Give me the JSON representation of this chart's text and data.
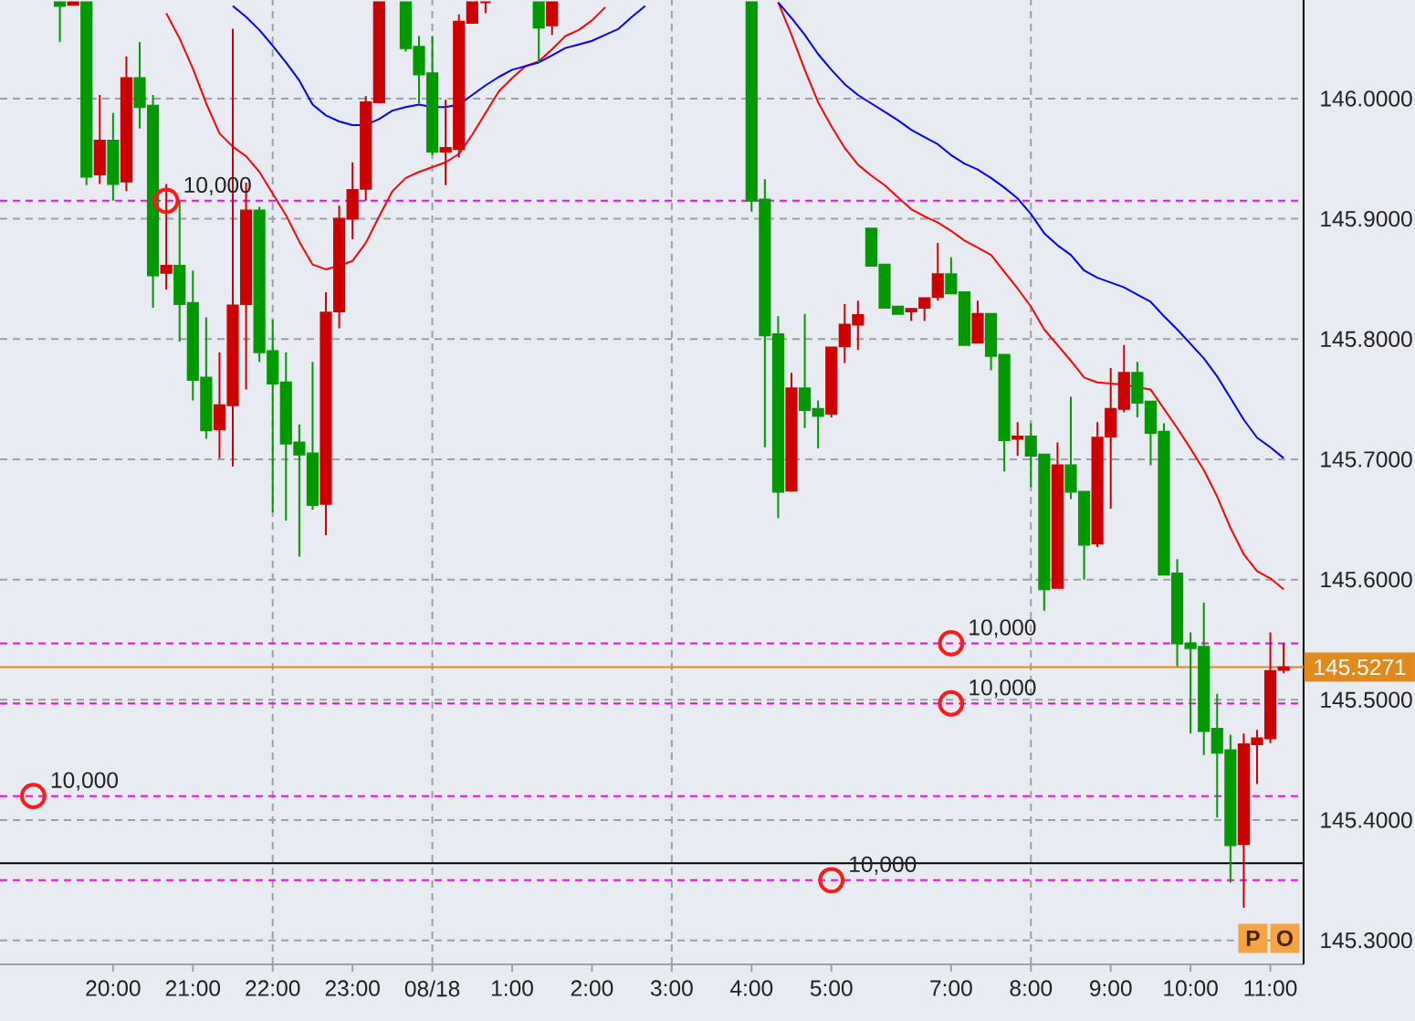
{
  "chart_data": {
    "type": "candlestick",
    "categories": [
      null,
      null,
      null,
      null,
      null,
      null,
      null,
      null,
      "20:00",
      null,
      null,
      null,
      null,
      null,
      "21:00",
      null,
      null,
      null,
      null,
      null,
      "22:00",
      null,
      null,
      null,
      null,
      null,
      "23:00",
      null,
      null,
      null,
      null,
      null,
      "08/18",
      null,
      null,
      null,
      null,
      null,
      "1:00",
      null,
      null,
      null,
      null,
      null,
      "2:00",
      null,
      null,
      null,
      null,
      null,
      "3:00",
      null,
      null,
      null,
      null,
      null,
      "4:00",
      null,
      null,
      null,
      null,
      null,
      "5:00",
      null,
      null,
      null,
      null,
      null,
      null,
      null,
      null,
      "7:00",
      null,
      null,
      null,
      null,
      null,
      "8:00",
      null,
      null,
      null,
      null,
      null,
      "9:00",
      null,
      null,
      null,
      null,
      null,
      "10:00",
      null,
      null,
      null,
      null,
      null,
      "11:00",
      null,
      null
    ],
    "ohlc": [
      null,
      null,
      null,
      null,
      [
        146.08,
        146.08,
        146.047,
        146.077
      ],
      [
        146.078,
        146.08,
        146.078,
        146.08
      ],
      [
        146.08,
        146.08,
        145.928,
        145.935
      ],
      [
        145.937,
        146.003,
        145.929,
        145.965
      ],
      [
        145.965,
        145.988,
        145.915,
        145.929
      ],
      [
        145.931,
        146.035,
        145.923,
        146.017
      ],
      [
        146.017,
        146.047,
        145.975,
        145.993
      ],
      [
        145.994,
        146.003,
        145.826,
        145.853
      ],
      [
        145.855,
        145.929,
        145.841,
        145.861
      ],
      [
        145.861,
        145.915,
        145.798,
        145.829
      ],
      [
        145.83,
        145.857,
        145.749,
        145.766
      ],
      [
        145.768,
        145.818,
        145.717,
        145.724
      ],
      [
        145.725,
        145.789,
        145.701,
        145.745
      ],
      [
        145.745,
        146.058,
        145.694,
        145.828
      ],
      [
        145.829,
        145.93,
        145.758,
        145.907
      ],
      [
        145.907,
        145.91,
        145.781,
        145.789
      ],
      [
        145.79,
        145.816,
        145.656,
        145.763
      ],
      [
        145.764,
        145.789,
        145.649,
        145.713
      ],
      [
        145.714,
        145.729,
        145.619,
        145.704
      ],
      [
        145.705,
        145.781,
        145.658,
        145.662
      ],
      [
        145.663,
        145.839,
        145.637,
        145.822
      ],
      [
        145.823,
        145.911,
        145.809,
        145.9
      ],
      [
        145.9,
        145.947,
        145.883,
        145.924
      ],
      [
        145.925,
        146.002,
        145.915,
        145.997
      ],
      [
        145.997,
        146.08,
        145.996,
        146.08
      ],
      null,
      [
        146.08,
        146.08,
        146.039,
        146.042
      ],
      [
        146.043,
        146.052,
        145.996,
        146.02
      ],
      [
        146.021,
        146.052,
        145.953,
        145.956
      ],
      [
        145.956,
        145.999,
        145.928,
        145.959
      ],
      [
        145.958,
        146.07,
        145.951,
        146.064
      ],
      [
        146.063,
        146.08,
        146.063,
        146.08
      ],
      [
        146.08,
        146.08,
        146.071,
        146.08
      ],
      null,
      null,
      null,
      [
        146.08,
        146.08,
        146.03,
        146.059
      ],
      [
        146.061,
        146.08,
        146.053,
        146.08
      ],
      null,
      null,
      null,
      null,
      null,
      null,
      null,
      null,
      null,
      null,
      null,
      null,
      null,
      null,
      [
        146.08,
        146.08,
        145.906,
        145.915
      ],
      [
        145.916,
        145.933,
        145.71,
        145.803
      ],
      [
        145.804,
        145.819,
        145.651,
        145.673
      ],
      [
        145.674,
        145.772,
        145.673,
        145.759
      ],
      [
        145.759,
        145.821,
        145.726,
        145.741
      ],
      [
        145.742,
        145.749,
        145.709,
        145.736
      ],
      [
        145.738,
        145.793,
        145.735,
        145.793
      ],
      [
        145.794,
        145.829,
        145.78,
        145.812
      ],
      [
        145.812,
        145.832,
        145.791,
        145.82
      ],
      [
        145.892,
        145.892,
        145.861,
        145.861
      ],
      [
        145.862,
        145.862,
        145.826,
        145.826
      ],
      [
        145.827,
        145.827,
        145.821,
        145.821
      ],
      [
        145.823,
        145.825,
        145.815,
        145.825
      ],
      [
        145.826,
        145.834,
        145.815,
        145.834
      ],
      [
        145.835,
        145.88,
        145.832,
        145.854
      ],
      [
        145.854,
        145.868,
        145.838,
        145.838
      ],
      [
        145.839,
        145.839,
        145.795,
        145.795
      ],
      [
        145.797,
        145.832,
        145.797,
        145.821
      ],
      [
        145.821,
        145.821,
        145.774,
        145.786
      ],
      [
        145.787,
        145.787,
        145.69,
        145.716
      ],
      [
        145.717,
        145.731,
        145.703,
        145.719
      ],
      [
        145.719,
        145.73,
        145.677,
        145.703
      ],
      [
        145.704,
        145.704,
        145.574,
        145.592
      ],
      [
        145.593,
        145.714,
        145.593,
        145.695
      ],
      [
        145.695,
        145.752,
        145.667,
        145.673
      ],
      [
        145.673,
        145.673,
        145.6,
        145.629
      ],
      [
        145.63,
        145.731,
        145.627,
        145.718
      ],
      [
        145.719,
        145.776,
        145.659,
        145.742
      ],
      [
        145.742,
        145.795,
        145.739,
        145.772
      ],
      [
        145.772,
        145.781,
        145.735,
        145.747
      ],
      [
        145.748,
        145.748,
        145.695,
        145.722
      ],
      [
        145.723,
        145.73,
        145.604,
        145.604
      ],
      [
        145.605,
        145.617,
        145.528,
        145.547
      ],
      [
        145.547,
        145.556,
        145.472,
        145.543
      ],
      [
        145.544,
        145.581,
        145.454,
        145.474
      ],
      [
        145.476,
        145.505,
        145.402,
        145.456
      ],
      [
        145.458,
        145.471,
        145.348,
        145.379
      ],
      [
        145.38,
        145.472,
        145.327,
        145.463
      ],
      [
        145.463,
        145.475,
        145.43,
        145.468
      ],
      [
        145.468,
        145.556,
        145.464,
        145.524
      ],
      [
        145.525,
        145.547,
        145.522,
        145.527
      ],
      null
    ],
    "colors": [
      null,
      null,
      null,
      null,
      "#009900",
      "#cc0000",
      "#009900",
      "#cc0000",
      "#009900",
      "#cc0000",
      "#009900",
      "#009900",
      "#cc0000",
      "#009900",
      "#009900",
      "#009900",
      "#cc0000",
      "#cc0000",
      "#cc0000",
      "#009900",
      "#009900",
      "#009900",
      "#009900",
      "#009900",
      "#cc0000",
      "#cc0000",
      "#cc0000",
      "#cc0000",
      "#cc0000",
      null,
      "#009900",
      "#009900",
      "#009900",
      "#cc0000",
      "#cc0000",
      "#cc0000",
      "#cc0000",
      null,
      null,
      null,
      "#009900",
      "#cc0000",
      null,
      null,
      null,
      null,
      null,
      null,
      null,
      null,
      null,
      null,
      null,
      null,
      null,
      null,
      "#009900",
      "#009900",
      "#009900",
      "#cc0000",
      "#009900",
      "#009900",
      "#cc0000",
      "#cc0000",
      "#cc0000",
      "#009900",
      "#009900",
      "#009900",
      "#cc0000",
      "#cc0000",
      "#cc0000",
      "#009900",
      "#009900",
      "#cc0000",
      "#009900",
      "#009900",
      "#cc0000",
      "#009900",
      "#009900",
      "#cc0000",
      "#009900",
      "#009900",
      "#cc0000",
      "#cc0000",
      "#cc0000",
      "#009900",
      "#009900",
      "#009900",
      "#009900",
      "#009900",
      "#009900",
      "#009900",
      "#009900",
      "#cc0000",
      "#cc0000",
      "#cc0000",
      "#cc0000",
      null
    ],
    "series": [
      {
        "type": "line",
        "color": "#ff0000",
        "values": [
          null,
          null,
          null,
          null,
          null,
          null,
          null,
          null,
          null,
          null,
          null,
          null,
          146.071,
          146.05,
          146.025,
          145.996,
          145.971,
          145.96,
          145.952,
          145.939,
          145.921,
          145.903,
          145.881,
          145.862,
          145.858,
          145.861,
          145.865,
          145.88,
          145.902,
          145.923,
          145.934,
          145.939,
          145.943,
          145.947,
          145.954,
          145.97,
          145.988,
          146.006,
          146.017,
          146.027,
          146.031,
          146.041,
          146.052,
          146.057,
          146.065,
          146.076,
          null,
          null,
          null,
          null,
          null,
          null,
          null,
          null,
          null,
          null,
          null,
          null,
          146.08,
          146.053,
          146.024,
          145.997,
          145.977,
          145.959,
          145.945,
          145.936,
          145.928,
          145.918,
          145.908,
          145.902,
          145.897,
          145.89,
          145.882,
          145.876,
          145.87,
          145.856,
          145.842,
          145.827,
          145.808,
          145.795,
          145.782,
          145.768,
          145.764,
          145.763,
          145.762,
          145.76,
          145.758,
          145.742,
          145.726,
          145.709,
          145.691,
          145.669,
          145.643,
          145.621,
          145.607,
          145.601,
          145.592,
          null
        ]
      },
      {
        "type": "line",
        "color": "#0000ff",
        "values": [
          null,
          null,
          null,
          null,
          null,
          null,
          null,
          null,
          null,
          null,
          null,
          null,
          null,
          null,
          null,
          null,
          null,
          146.077,
          146.068,
          146.057,
          146.044,
          146.03,
          146.015,
          145.995,
          145.986,
          145.981,
          145.978,
          145.978,
          145.983,
          145.99,
          145.993,
          145.995,
          145.993,
          145.993,
          145.995,
          146.003,
          146.011,
          146.018,
          146.024,
          146.027,
          146.03,
          146.036,
          146.042,
          146.045,
          146.048,
          146.053,
          146.058,
          146.068,
          146.077,
          null,
          null,
          null,
          null,
          null,
          null,
          null,
          null,
          null,
          146.08,
          146.067,
          146.053,
          146.037,
          146.024,
          146.012,
          146.003,
          145.996,
          145.989,
          145.982,
          145.974,
          145.968,
          145.962,
          145.953,
          145.946,
          145.941,
          145.934,
          145.926,
          145.917,
          145.904,
          145.888,
          145.878,
          145.87,
          145.857,
          145.851,
          145.847,
          145.843,
          145.837,
          145.831,
          145.819,
          145.808,
          145.796,
          145.784,
          145.769,
          145.751,
          145.733,
          145.718,
          145.71,
          145.701,
          null
        ]
      },
      {
        "type": "scatter",
        "name": "10,000",
        "marker": "circle",
        "color": "#ff1a1a",
        "values": [
          null,
          null,
          null,
          null,
          null,
          null,
          null,
          null,
          null,
          null,
          null,
          null,
          145.915,
          null,
          null,
          null,
          null,
          null,
          null,
          null,
          null,
          null,
          null,
          null,
          null,
          null,
          null,
          null,
          null,
          null,
          null,
          null,
          null,
          null,
          null,
          null,
          null,
          null,
          null,
          null,
          null,
          null,
          null,
          null,
          null,
          null,
          null,
          null,
          null,
          null,
          null,
          null,
          null,
          null,
          null,
          null,
          null,
          null,
          null,
          null,
          null,
          null,
          null,
          null,
          null,
          null,
          null,
          null,
          null,
          null,
          null,
          null,
          null,
          null,
          null,
          null,
          null,
          null,
          null,
          null,
          null,
          null,
          null,
          null,
          null,
          null,
          null,
          null,
          null,
          null,
          null,
          null,
          null,
          null,
          null,
          null,
          null,
          null
        ]
      },
      {
        "type": "scatter",
        "name": "10,000",
        "marker": "circle",
        "color": "#ff1a1a",
        "values": [
          null,
          null,
          null,
          null,
          null,
          null,
          null,
          null,
          null,
          null,
          null,
          null,
          null,
          null,
          null,
          null,
          null,
          null,
          null,
          null,
          null,
          null,
          null,
          null,
          null,
          null,
          null,
          null,
          null,
          null,
          null,
          null,
          null,
          null,
          null,
          null,
          null,
          null,
          null,
          null,
          null,
          null,
          null,
          null,
          null,
          null,
          null,
          null,
          null,
          null,
          null,
          null,
          null,
          null,
          null,
          null,
          null,
          null,
          null,
          null,
          null,
          null,
          null,
          null,
          null,
          null,
          null,
          null,
          null,
          null,
          null,
          145.547,
          null,
          null,
          null,
          null,
          null,
          null,
          null,
          null,
          null,
          null,
          null,
          null,
          null,
          null,
          null,
          null,
          null,
          null,
          null,
          null,
          null,
          null,
          null,
          null,
          null,
          null
        ]
      },
      {
        "type": "scatter",
        "name": "10,000",
        "marker": "circle",
        "color": "#ff1a1a",
        "values": [
          null,
          null,
          null,
          null,
          null,
          null,
          null,
          null,
          null,
          null,
          null,
          null,
          null,
          null,
          null,
          null,
          null,
          null,
          null,
          null,
          null,
          null,
          null,
          null,
          null,
          null,
          null,
          null,
          null,
          null,
          null,
          null,
          null,
          null,
          null,
          null,
          null,
          null,
          null,
          null,
          null,
          null,
          null,
          null,
          null,
          null,
          null,
          null,
          null,
          null,
          null,
          null,
          null,
          null,
          null,
          null,
          null,
          null,
          null,
          null,
          null,
          null,
          null,
          null,
          null,
          null,
          null,
          null,
          null,
          null,
          null,
          145.497,
          null,
          null,
          null,
          null,
          null,
          null,
          null,
          null,
          null,
          null,
          null,
          null,
          null,
          null,
          null,
          null,
          null,
          null,
          null,
          null,
          null,
          null,
          null,
          null,
          null,
          null
        ]
      },
      {
        "type": "scatter",
        "name": "10,000",
        "marker": "circle",
        "color": "#ff1a1a",
        "values": [
          null,
          null,
          145.42,
          null,
          null,
          null,
          null,
          null,
          null,
          null,
          null,
          null,
          null,
          null,
          null,
          null,
          null,
          null,
          null,
          null,
          null,
          null,
          null,
          null,
          null,
          null,
          null,
          null,
          null,
          null,
          null,
          null,
          null,
          null,
          null,
          null,
          null,
          null,
          null,
          null,
          null,
          null,
          null,
          null,
          null,
          null,
          null,
          null,
          null,
          null,
          null,
          null,
          null,
          null,
          null,
          null,
          null,
          null,
          null,
          null,
          null,
          null,
          null,
          null,
          null,
          null,
          null,
          null,
          null,
          null,
          null,
          null,
          null,
          null,
          null,
          null,
          null,
          null,
          null,
          null,
          null,
          null,
          null,
          null,
          null,
          null,
          null,
          null,
          null,
          null,
          null,
          null,
          null,
          null,
          null,
          null,
          null,
          null
        ]
      },
      {
        "type": "scatter",
        "name": "10,000",
        "marker": "circle",
        "color": "#ff1a1a",
        "values": [
          null,
          null,
          null,
          null,
          null,
          null,
          null,
          null,
          null,
          null,
          null,
          null,
          null,
          null,
          null,
          null,
          null,
          null,
          null,
          null,
          null,
          null,
          null,
          null,
          null,
          null,
          null,
          null,
          null,
          null,
          null,
          null,
          null,
          null,
          null,
          null,
          null,
          null,
          null,
          null,
          null,
          null,
          null,
          null,
          null,
          null,
          null,
          null,
          null,
          null,
          null,
          null,
          null,
          null,
          null,
          null,
          null,
          null,
          null,
          null,
          null,
          null,
          145.35,
          null,
          null,
          null,
          null,
          null,
          null,
          null,
          null,
          null,
          null,
          null,
          null,
          null,
          null,
          null,
          null,
          null,
          null,
          null,
          null,
          null,
          null,
          null,
          null,
          null,
          null,
          null,
          null,
          null,
          null,
          null,
          null,
          null,
          null,
          null
        ]
      }
    ],
    "ylim": [
      145.28,
      146.082
    ],
    "yticks": [
      {
        "value": 145.3,
        "label": "145.3000"
      },
      {
        "value": 145.4,
        "label": "145.4000"
      },
      {
        "value": 145.5,
        "label": "145.5000"
      },
      {
        "value": 145.6,
        "label": "145.6000"
      },
      {
        "value": 145.7,
        "label": "145.7000"
      },
      {
        "value": 145.8,
        "label": "145.8000"
      },
      {
        "value": 145.9,
        "label": "145.9000"
      },
      {
        "value": 146.0,
        "label": "146.0000"
      }
    ],
    "grid": "y",
    "ref_lines": [
      {
        "axis": "x",
        "value": "22:00",
        "color": "#a0a0a0",
        "line_style": "dashed"
      },
      {
        "axis": "x",
        "value": "08/18",
        "color": "#a0a0a0",
        "line_style": "dashed"
      },
      {
        "axis": "x",
        "value": "3:00",
        "color": "#a0a0a0",
        "line_style": "dashed"
      },
      {
        "axis": "x",
        "value": "8:00",
        "color": "#a0a0a0",
        "line_style": "dashed"
      },
      {
        "axis": "y",
        "value": 145.915,
        "color": "#ff00ff",
        "line_style": "dashed"
      },
      {
        "axis": "y",
        "value": 145.547,
        "color": "#ff00ff",
        "line_style": "dashed"
      },
      {
        "axis": "y",
        "value": 145.497,
        "color": "#ff00ff",
        "line_style": "dashed"
      },
      {
        "axis": "y",
        "value": 145.42,
        "color": "#ff00ff",
        "line_style": "dashed"
      },
      {
        "axis": "y",
        "value": 145.35,
        "color": "#ff00ff",
        "line_style": "dashed"
      },
      {
        "axis": "y",
        "value": 145.5271,
        "label": "145.5271",
        "color": "#e08a1e"
      },
      {
        "axis": "y",
        "value": 145.364,
        "color": "#000000"
      }
    ],
    "annotations": [
      "P",
      "O"
    ]
  }
}
